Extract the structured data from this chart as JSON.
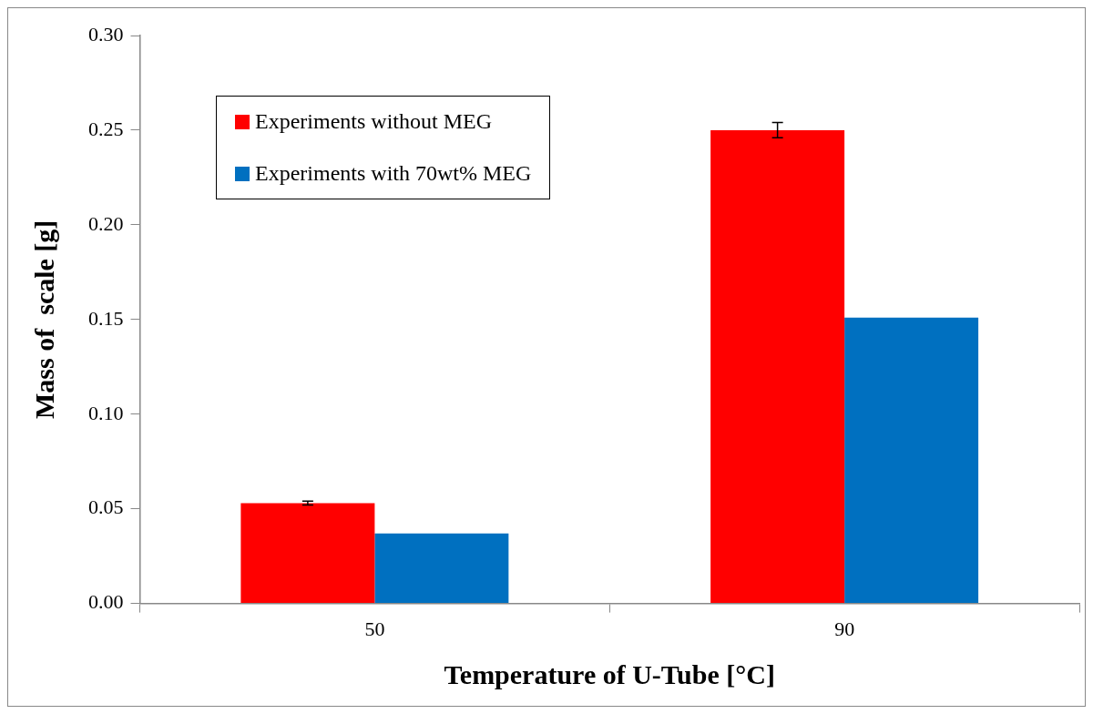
{
  "chart_data": {
    "type": "bar",
    "xlabel": "Temperature of U-Tube [°C]",
    "ylabel": "Mass of  scale [g]",
    "categories": [
      "50",
      "90"
    ],
    "series": [
      {
        "name": "Experiments without MEG",
        "color": "#ff0000",
        "values": [
          0.053,
          0.25
        ],
        "errors": [
          0.001,
          0.004
        ]
      },
      {
        "name": "Experiments with 70wt% MEG",
        "color": "#0070c0",
        "values": [
          0.037,
          0.151
        ]
      }
    ],
    "ylim": [
      0,
      0.3
    ],
    "yticks": [
      {
        "value": 0,
        "label": "0.00"
      },
      {
        "value": 0.05,
        "label": "0.05"
      },
      {
        "value": 0.1,
        "label": "0.10"
      },
      {
        "value": 0.15,
        "label": "0.15"
      },
      {
        "value": 0.2,
        "label": "0.20"
      },
      {
        "value": 0.25,
        "label": "0.25"
      },
      {
        "value": 0.3,
        "label": "0.30"
      }
    ],
    "grid": false,
    "legend": "top left"
  }
}
